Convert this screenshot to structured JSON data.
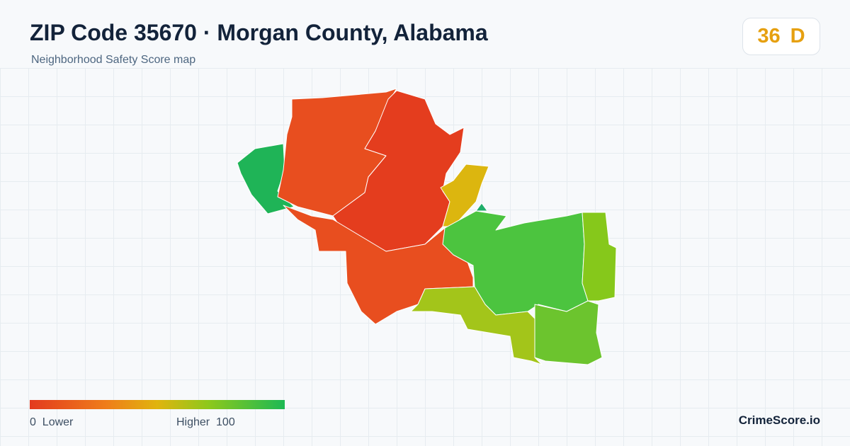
{
  "header": {
    "title": "ZIP Code 35670 · Morgan County, Alabama",
    "subtitle": "Neighborhood Safety Score map"
  },
  "score": {
    "value": "36",
    "grade": "D"
  },
  "legend": {
    "min": "0",
    "min_label": "Lower",
    "max_label": "Higher",
    "max": "100"
  },
  "brand": "CrimeScore.io"
}
